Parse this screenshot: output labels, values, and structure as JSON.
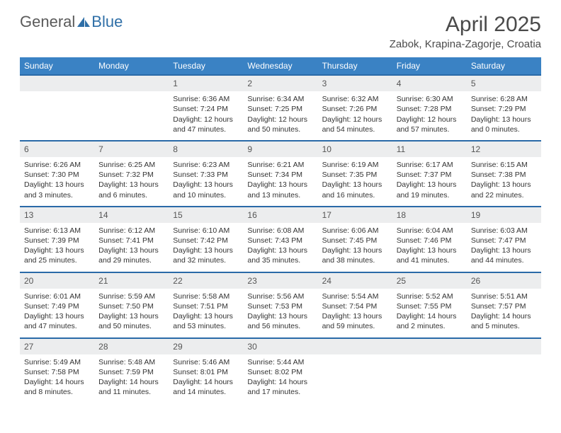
{
  "logo": {
    "general": "General",
    "blue": "Blue"
  },
  "title": "April 2025",
  "location": "Zabok, Krapina-Zagorje, Croatia",
  "colors": {
    "header_bg": "#3a82c4",
    "header_text": "#ffffff",
    "day_border": "#2a6aa8",
    "daynum_bg": "#ecedee",
    "text": "#333333",
    "logo_gray": "#5a5a5a",
    "logo_blue": "#2f6fa7"
  },
  "weekdays": [
    "Sunday",
    "Monday",
    "Tuesday",
    "Wednesday",
    "Thursday",
    "Friday",
    "Saturday"
  ],
  "weeks": [
    [
      null,
      null,
      {
        "n": "1",
        "sr": "Sunrise: 6:36 AM",
        "ss": "Sunset: 7:24 PM",
        "dl": "Daylight: 12 hours and 47 minutes."
      },
      {
        "n": "2",
        "sr": "Sunrise: 6:34 AM",
        "ss": "Sunset: 7:25 PM",
        "dl": "Daylight: 12 hours and 50 minutes."
      },
      {
        "n": "3",
        "sr": "Sunrise: 6:32 AM",
        "ss": "Sunset: 7:26 PM",
        "dl": "Daylight: 12 hours and 54 minutes."
      },
      {
        "n": "4",
        "sr": "Sunrise: 6:30 AM",
        "ss": "Sunset: 7:28 PM",
        "dl": "Daylight: 12 hours and 57 minutes."
      },
      {
        "n": "5",
        "sr": "Sunrise: 6:28 AM",
        "ss": "Sunset: 7:29 PM",
        "dl": "Daylight: 13 hours and 0 minutes."
      }
    ],
    [
      {
        "n": "6",
        "sr": "Sunrise: 6:26 AM",
        "ss": "Sunset: 7:30 PM",
        "dl": "Daylight: 13 hours and 3 minutes."
      },
      {
        "n": "7",
        "sr": "Sunrise: 6:25 AM",
        "ss": "Sunset: 7:32 PM",
        "dl": "Daylight: 13 hours and 6 minutes."
      },
      {
        "n": "8",
        "sr": "Sunrise: 6:23 AM",
        "ss": "Sunset: 7:33 PM",
        "dl": "Daylight: 13 hours and 10 minutes."
      },
      {
        "n": "9",
        "sr": "Sunrise: 6:21 AM",
        "ss": "Sunset: 7:34 PM",
        "dl": "Daylight: 13 hours and 13 minutes."
      },
      {
        "n": "10",
        "sr": "Sunrise: 6:19 AM",
        "ss": "Sunset: 7:35 PM",
        "dl": "Daylight: 13 hours and 16 minutes."
      },
      {
        "n": "11",
        "sr": "Sunrise: 6:17 AM",
        "ss": "Sunset: 7:37 PM",
        "dl": "Daylight: 13 hours and 19 minutes."
      },
      {
        "n": "12",
        "sr": "Sunrise: 6:15 AM",
        "ss": "Sunset: 7:38 PM",
        "dl": "Daylight: 13 hours and 22 minutes."
      }
    ],
    [
      {
        "n": "13",
        "sr": "Sunrise: 6:13 AM",
        "ss": "Sunset: 7:39 PM",
        "dl": "Daylight: 13 hours and 25 minutes."
      },
      {
        "n": "14",
        "sr": "Sunrise: 6:12 AM",
        "ss": "Sunset: 7:41 PM",
        "dl": "Daylight: 13 hours and 29 minutes."
      },
      {
        "n": "15",
        "sr": "Sunrise: 6:10 AM",
        "ss": "Sunset: 7:42 PM",
        "dl": "Daylight: 13 hours and 32 minutes."
      },
      {
        "n": "16",
        "sr": "Sunrise: 6:08 AM",
        "ss": "Sunset: 7:43 PM",
        "dl": "Daylight: 13 hours and 35 minutes."
      },
      {
        "n": "17",
        "sr": "Sunrise: 6:06 AM",
        "ss": "Sunset: 7:45 PM",
        "dl": "Daylight: 13 hours and 38 minutes."
      },
      {
        "n": "18",
        "sr": "Sunrise: 6:04 AM",
        "ss": "Sunset: 7:46 PM",
        "dl": "Daylight: 13 hours and 41 minutes."
      },
      {
        "n": "19",
        "sr": "Sunrise: 6:03 AM",
        "ss": "Sunset: 7:47 PM",
        "dl": "Daylight: 13 hours and 44 minutes."
      }
    ],
    [
      {
        "n": "20",
        "sr": "Sunrise: 6:01 AM",
        "ss": "Sunset: 7:49 PM",
        "dl": "Daylight: 13 hours and 47 minutes."
      },
      {
        "n": "21",
        "sr": "Sunrise: 5:59 AM",
        "ss": "Sunset: 7:50 PM",
        "dl": "Daylight: 13 hours and 50 minutes."
      },
      {
        "n": "22",
        "sr": "Sunrise: 5:58 AM",
        "ss": "Sunset: 7:51 PM",
        "dl": "Daylight: 13 hours and 53 minutes."
      },
      {
        "n": "23",
        "sr": "Sunrise: 5:56 AM",
        "ss": "Sunset: 7:53 PM",
        "dl": "Daylight: 13 hours and 56 minutes."
      },
      {
        "n": "24",
        "sr": "Sunrise: 5:54 AM",
        "ss": "Sunset: 7:54 PM",
        "dl": "Daylight: 13 hours and 59 minutes."
      },
      {
        "n": "25",
        "sr": "Sunrise: 5:52 AM",
        "ss": "Sunset: 7:55 PM",
        "dl": "Daylight: 14 hours and 2 minutes."
      },
      {
        "n": "26",
        "sr": "Sunrise: 5:51 AM",
        "ss": "Sunset: 7:57 PM",
        "dl": "Daylight: 14 hours and 5 minutes."
      }
    ],
    [
      {
        "n": "27",
        "sr": "Sunrise: 5:49 AM",
        "ss": "Sunset: 7:58 PM",
        "dl": "Daylight: 14 hours and 8 minutes."
      },
      {
        "n": "28",
        "sr": "Sunrise: 5:48 AM",
        "ss": "Sunset: 7:59 PM",
        "dl": "Daylight: 14 hours and 11 minutes."
      },
      {
        "n": "29",
        "sr": "Sunrise: 5:46 AM",
        "ss": "Sunset: 8:01 PM",
        "dl": "Daylight: 14 hours and 14 minutes."
      },
      {
        "n": "30",
        "sr": "Sunrise: 5:44 AM",
        "ss": "Sunset: 8:02 PM",
        "dl": "Daylight: 14 hours and 17 minutes."
      },
      null,
      null,
      null
    ]
  ]
}
